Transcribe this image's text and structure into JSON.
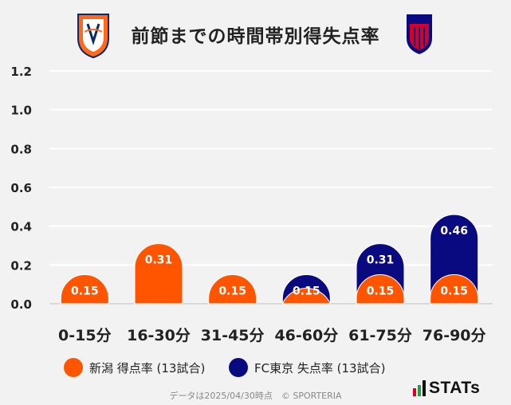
{
  "chart_data": {
    "type": "bar",
    "title": "前節までの時間帯別得失点率",
    "categories": [
      "0-15分",
      "16-30分",
      "31-45分",
      "46-60分",
      "61-75分",
      "76-90分"
    ],
    "series": [
      {
        "name": "FC東京 失点率 (13試合)",
        "values": [
          0.15,
          0.31,
          0.15,
          0.15,
          0.31,
          0.46
        ],
        "labels": [
          "",
          "",
          "",
          "0.15",
          "0.31",
          "0.46"
        ],
        "color": "#0a0a80"
      },
      {
        "name": "新潟 得点率 (13試合)",
        "values": [
          0.15,
          0.31,
          0.15,
          0.08,
          0.15,
          0.15
        ],
        "labels": [
          "0.15",
          "0.31",
          "0.15",
          "",
          "0.15",
          "0.15"
        ],
        "color": "#ff5500"
      }
    ],
    "ylim": [
      0,
      1.2
    ],
    "yticks": [
      "0.0",
      "0.2",
      "0.4",
      "0.6",
      "0.8",
      "1.0",
      "1.2"
    ],
    "grid": true,
    "legend_position": "bottom"
  },
  "footer": {
    "note": "データは2025/04/30時点　© SPORTERIA",
    "brand": "STATs"
  },
  "colors": {
    "background": "#f2f2f2",
    "grid": "#ffffff",
    "text": "#222222"
  }
}
